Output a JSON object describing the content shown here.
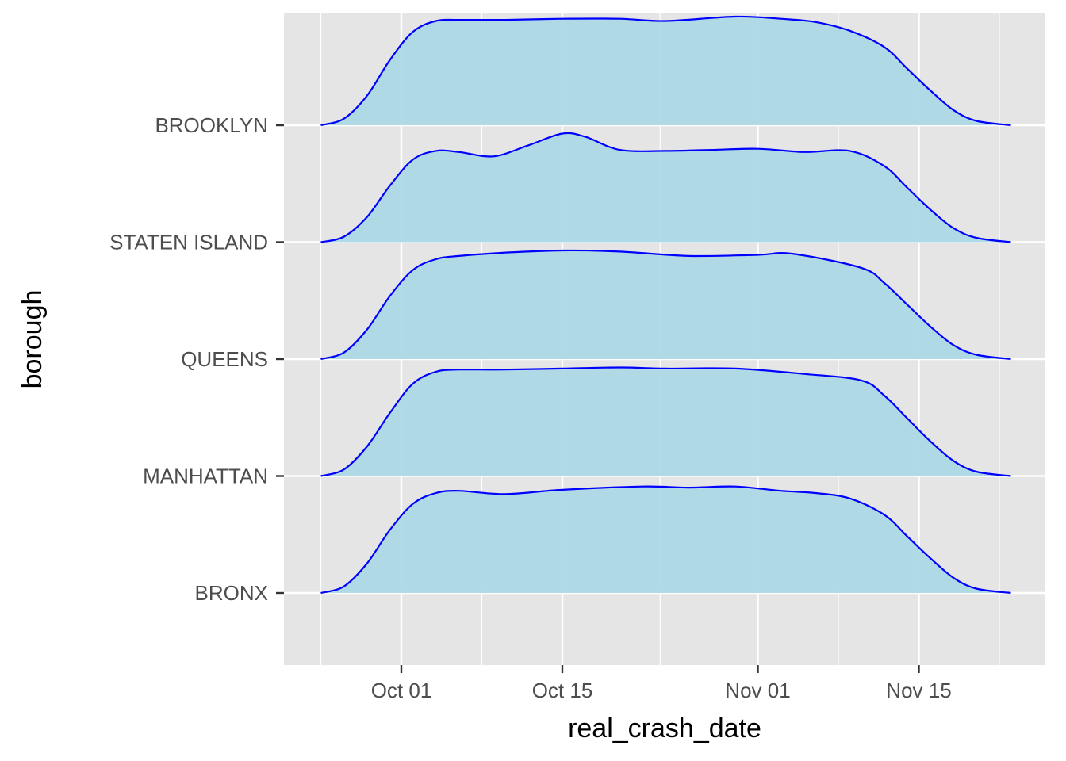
{
  "chart_data": {
    "type": "area",
    "subtype": "ridgeline-density",
    "title": "",
    "xlabel": "real_crash_date",
    "ylabel": "borough",
    "x_ticks": [
      {
        "date": "2023-10-01",
        "label": "Oct 01"
      },
      {
        "date": "2023-10-15",
        "label": "Oct 15"
      },
      {
        "date": "2023-11-01",
        "label": "Nov 01"
      },
      {
        "date": "2023-11-15",
        "label": "Nov 15"
      }
    ],
    "xlim": [
      "2023-09-23",
      "2023-11-26"
    ],
    "y_categories": [
      "BRONX",
      "MANHATTAN",
      "QUEENS",
      "STATEN ISLAND",
      "BROOKLYN"
    ],
    "fill_color": "#add8e6",
    "line_color": "#0000ff",
    "panel_background": "#e5e5e5",
    "grid": true,
    "series": [
      {
        "name": "BRONX",
        "x": [
          "2023-09-24",
          "2023-09-26",
          "2023-09-28",
          "2023-09-30",
          "2023-10-02",
          "2023-10-04",
          "2023-10-06",
          "2023-10-10",
          "2023-10-15",
          "2023-10-22",
          "2023-10-26",
          "2023-10-30",
          "2023-11-03",
          "2023-11-06",
          "2023-11-09",
          "2023-11-12",
          "2023-11-14",
          "2023-11-16",
          "2023-11-18",
          "2023-11-20",
          "2023-11-23"
        ],
        "y": [
          0.0,
          0.06,
          0.27,
          0.58,
          0.82,
          0.92,
          0.94,
          0.91,
          0.95,
          0.98,
          0.97,
          0.98,
          0.94,
          0.92,
          0.87,
          0.72,
          0.52,
          0.32,
          0.14,
          0.04,
          0.0
        ]
      },
      {
        "name": "MANHATTAN",
        "x": [
          "2023-09-24",
          "2023-09-26",
          "2023-09-28",
          "2023-09-30",
          "2023-10-02",
          "2023-10-04",
          "2023-10-06",
          "2023-10-10",
          "2023-10-15",
          "2023-10-20",
          "2023-10-24",
          "2023-10-30",
          "2023-11-05",
          "2023-11-10",
          "2023-11-12",
          "2023-11-14",
          "2023-11-16",
          "2023-11-18",
          "2023-11-20",
          "2023-11-23"
        ],
        "y": [
          0.0,
          0.06,
          0.27,
          0.58,
          0.85,
          0.96,
          0.98,
          0.98,
          0.99,
          1.0,
          0.99,
          0.99,
          0.94,
          0.88,
          0.74,
          0.53,
          0.32,
          0.14,
          0.04,
          0.0
        ]
      },
      {
        "name": "QUEENS",
        "x": [
          "2023-09-24",
          "2023-09-26",
          "2023-09-28",
          "2023-09-30",
          "2023-10-02",
          "2023-10-04",
          "2023-10-06",
          "2023-10-10",
          "2023-10-15",
          "2023-10-20",
          "2023-10-26",
          "2023-11-01",
          "2023-11-04",
          "2023-11-10",
          "2023-11-12",
          "2023-11-14",
          "2023-11-16",
          "2023-11-18",
          "2023-11-20",
          "2023-11-23"
        ],
        "y": [
          0.0,
          0.06,
          0.27,
          0.58,
          0.82,
          0.92,
          0.95,
          0.98,
          1.0,
          0.99,
          0.95,
          0.96,
          0.97,
          0.84,
          0.7,
          0.5,
          0.3,
          0.13,
          0.04,
          0.0
        ]
      },
      {
        "name": "STATEN ISLAND",
        "x": [
          "2023-09-24",
          "2023-09-26",
          "2023-09-28",
          "2023-09-30",
          "2023-10-02",
          "2023-10-04",
          "2023-10-06",
          "2023-10-09",
          "2023-10-12",
          "2023-10-15",
          "2023-10-17",
          "2023-10-20",
          "2023-10-24",
          "2023-10-28",
          "2023-11-01",
          "2023-11-05",
          "2023-11-09",
          "2023-11-12",
          "2023-11-14",
          "2023-11-16",
          "2023-11-18",
          "2023-11-20",
          "2023-11-23"
        ],
        "y": [
          0.0,
          0.05,
          0.23,
          0.52,
          0.76,
          0.84,
          0.83,
          0.79,
          0.89,
          1.0,
          0.97,
          0.85,
          0.84,
          0.85,
          0.86,
          0.83,
          0.84,
          0.7,
          0.5,
          0.3,
          0.13,
          0.04,
          0.0
        ]
      },
      {
        "name": "BROOKLYN",
        "x": [
          "2023-09-24",
          "2023-09-26",
          "2023-09-28",
          "2023-09-30",
          "2023-10-02",
          "2023-10-04",
          "2023-10-06",
          "2023-10-10",
          "2023-10-15",
          "2023-10-20",
          "2023-10-24",
          "2023-10-30",
          "2023-11-03",
          "2023-11-06",
          "2023-11-09",
          "2023-11-12",
          "2023-11-14",
          "2023-11-16",
          "2023-11-18",
          "2023-11-20",
          "2023-11-23"
        ],
        "y": [
          0.0,
          0.06,
          0.27,
          0.6,
          0.86,
          0.96,
          0.97,
          0.97,
          0.98,
          0.98,
          0.96,
          1.0,
          0.98,
          0.95,
          0.87,
          0.72,
          0.52,
          0.32,
          0.14,
          0.04,
          0.0
        ]
      }
    ]
  }
}
